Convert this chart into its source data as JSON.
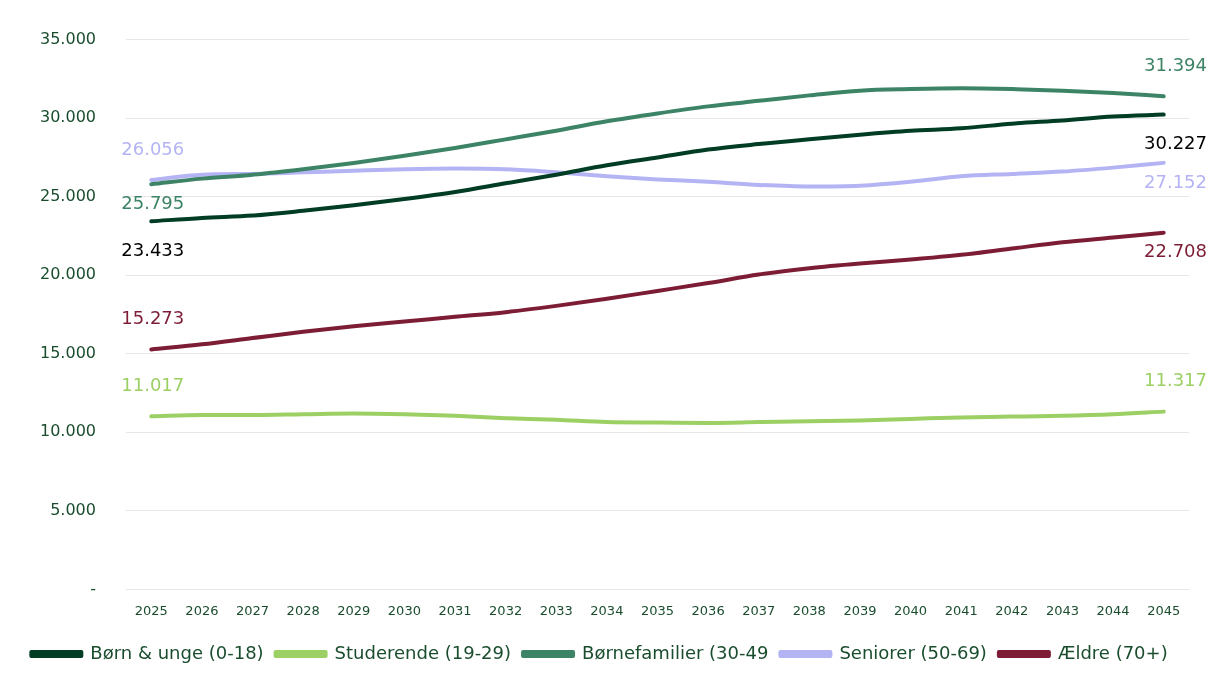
{
  "chart_data": {
    "type": "line",
    "categories": [
      "2025",
      "2026",
      "2027",
      "2028",
      "2029",
      "2030",
      "2031",
      "2032",
      "2033",
      "2034",
      "2035",
      "2036",
      "2037",
      "2038",
      "2039",
      "2040",
      "2041",
      "2042",
      "2043",
      "2044",
      "2045"
    ],
    "ylim": [
      0,
      35000
    ],
    "yticks": [
      {
        "value": 0,
        "label": "-"
      },
      {
        "value": 5000,
        "label": "5.000"
      },
      {
        "value": 10000,
        "label": "10.000"
      },
      {
        "value": 15000,
        "label": "15.000"
      },
      {
        "value": 20000,
        "label": "20.000"
      },
      {
        "value": 25000,
        "label": "25.000"
      },
      {
        "value": 30000,
        "label": "30.000"
      },
      {
        "value": 35000,
        "label": "35.000"
      }
    ],
    "grid": "y",
    "legend": "bottom",
    "marker": "none",
    "line_style": "solid",
    "series": [
      {
        "name": "Børn & unge (0-18)",
        "color": "#003d24",
        "values": [
          23433,
          23650,
          23800,
          24100,
          24450,
          24850,
          25300,
          25850,
          26400,
          27000,
          27500,
          28000,
          28350,
          28650,
          28950,
          29200,
          29350,
          29650,
          29850,
          30100,
          30227
        ],
        "value_labels": [
          "23.433",
          null,
          null,
          null,
          null,
          null,
          null,
          null,
          null,
          null,
          null,
          null,
          null,
          null,
          null,
          null,
          null,
          null,
          null,
          null,
          "30.227"
        ]
      },
      {
        "name": "Studerende (19-29)",
        "color": "#9ccf64",
        "values": [
          11017,
          11100,
          11100,
          11150,
          11200,
          11150,
          11050,
          10900,
          10800,
          10650,
          10620,
          10600,
          10650,
          10700,
          10750,
          10850,
          10950,
          11000,
          11050,
          11150,
          11317
        ],
        "value_labels": [
          "11.017",
          null,
          null,
          null,
          null,
          null,
          null,
          null,
          null,
          null,
          null,
          null,
          null,
          null,
          null,
          null,
          null,
          null,
          null,
          null,
          "11.317"
        ]
      },
      {
        "name": "Børnefamilier (30-49",
        "color": "#3d8466",
        "values": [
          25795,
          26150,
          26400,
          26750,
          27150,
          27600,
          28100,
          28650,
          29200,
          29800,
          30300,
          30750,
          31100,
          31450,
          31750,
          31850,
          31900,
          31850,
          31750,
          31600,
          31394
        ],
        "value_labels": [
          "25.795",
          null,
          null,
          null,
          null,
          null,
          null,
          null,
          null,
          null,
          null,
          null,
          null,
          null,
          null,
          null,
          null,
          null,
          null,
          null,
          "31.394"
        ]
      },
      {
        "name": "Seniorer (50-69)",
        "color": "#b4b4f5",
        "values": [
          26056,
          26400,
          26450,
          26550,
          26650,
          26750,
          26800,
          26750,
          26550,
          26300,
          26100,
          25950,
          25750,
          25650,
          25700,
          25950,
          26300,
          26450,
          26600,
          26850,
          27152
        ],
        "value_labels": [
          "26.056",
          null,
          null,
          null,
          null,
          null,
          null,
          null,
          null,
          null,
          null,
          null,
          null,
          null,
          null,
          null,
          null,
          null,
          null,
          null,
          "27.152"
        ]
      },
      {
        "name": "Ældre (70+)",
        "color": "#7d1d35",
        "values": [
          15273,
          15600,
          16000,
          16400,
          16750,
          17050,
          17350,
          17650,
          18050,
          18500,
          19000,
          19500,
          20050,
          20450,
          20750,
          21000,
          21300,
          21700,
          22100,
          22400,
          22708
        ],
        "value_labels": [
          "15.273",
          null,
          null,
          null,
          null,
          null,
          null,
          null,
          null,
          null,
          null,
          null,
          null,
          null,
          null,
          null,
          null,
          null,
          null,
          null,
          "22.708"
        ]
      }
    ]
  }
}
